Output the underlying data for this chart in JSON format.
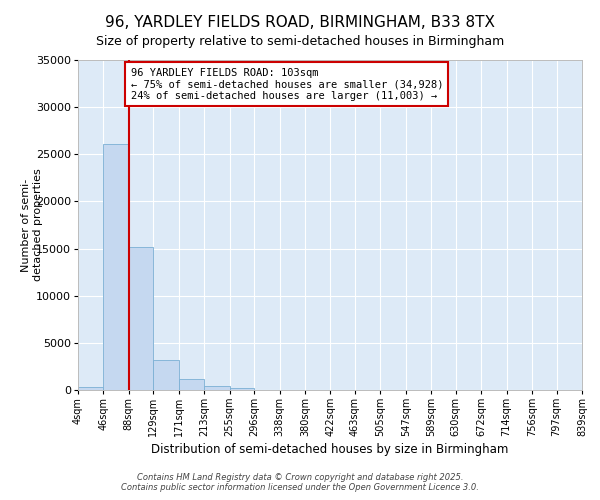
{
  "title_line1": "96, YARDLEY FIELDS ROAD, BIRMINGHAM, B33 8TX",
  "title_line2": "Size of property relative to semi-detached houses in Birmingham",
  "xlabel": "Distribution of semi-detached houses by size in Birmingham",
  "ylabel": "Number of semi-\ndetached properties",
  "annotation_title": "96 YARDLEY FIELDS ROAD: 103sqm",
  "annotation_line2": "← 75% of semi-detached houses are smaller (34,928)",
  "annotation_line3": "24% of semi-detached houses are larger (11,003) →",
  "property_bin_edge": 88,
  "bin_edges": [
    4,
    46,
    88,
    129,
    171,
    213,
    255,
    296,
    338,
    380,
    422,
    463,
    505,
    547,
    589,
    630,
    672,
    714,
    756,
    797,
    839
  ],
  "bin_labels": [
    "4sqm",
    "46sqm",
    "88sqm",
    "129sqm",
    "171sqm",
    "213sqm",
    "255sqm",
    "296sqm",
    "338sqm",
    "380sqm",
    "422sqm",
    "463sqm",
    "505sqm",
    "547sqm",
    "589sqm",
    "630sqm",
    "672sqm",
    "714sqm",
    "756sqm",
    "797sqm",
    "839sqm"
  ],
  "counts": [
    300,
    26100,
    15200,
    3200,
    1150,
    450,
    200,
    0,
    0,
    0,
    0,
    0,
    0,
    0,
    0,
    0,
    0,
    0,
    0,
    0
  ],
  "bar_color": "#c5d8f0",
  "bar_edge_color": "#7bafd4",
  "red_line_color": "#cc0000",
  "annotation_box_edge_color": "#cc0000",
  "plot_background": "#ddeaf7",
  "ylim": [
    0,
    35000
  ],
  "yticks": [
    0,
    5000,
    10000,
    15000,
    20000,
    25000,
    30000,
    35000
  ],
  "footer_line1": "Contains HM Land Registry data © Crown copyright and database right 2025.",
  "footer_line2": "Contains public sector information licensed under the Open Government Licence 3.0."
}
